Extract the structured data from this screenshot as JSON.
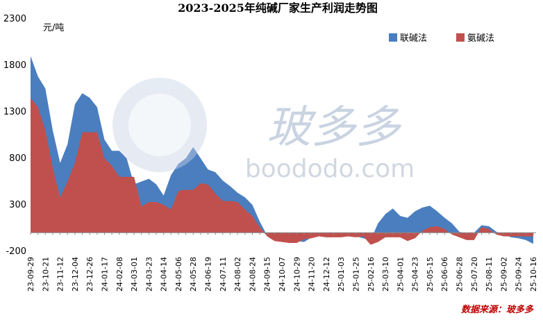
{
  "chart_data": {
    "type": "area",
    "title": "2023-2025年纯碱厂家生产利润走势图",
    "y_label": "元/吨",
    "source": "数据来源：玻多多",
    "watermark": [
      "玻多多",
      "boododo.com"
    ],
    "legend_position": "upper right",
    "categories": [
      "23-09-29",
      null,
      "23-10-21",
      null,
      "23-11-12",
      null,
      "23-12-04",
      null,
      "23-12-26",
      null,
      "24-01-17",
      null,
      "24-02-08",
      null,
      "24-03-01",
      null,
      "24-03-23",
      null,
      "24-04-14",
      null,
      "24-05-06",
      null,
      "24-05-28",
      null,
      "24-06-19",
      null,
      "24-07-11",
      null,
      "24-08-02",
      null,
      "24-08-24",
      null,
      "24-09-15",
      null,
      "24-10-07",
      null,
      "24-10-29",
      null,
      "24-11-20",
      null,
      "24-12-12",
      null,
      "25-01-03",
      null,
      "25-01-25",
      null,
      "25-02-16",
      null,
      "25-03-10",
      null,
      "25-04-01",
      null,
      "25-04-23",
      null,
      "25-05-15",
      null,
      "25-06-06",
      null,
      "25-06-28",
      null,
      "25-07-20",
      null,
      "25-08-11",
      null,
      "25-09-02",
      null,
      "25-09-24",
      null,
      "25-10-16"
    ],
    "series": [
      {
        "name": "联碱法",
        "color": "#4a7ebf",
        "values": [
          1900,
          1680,
          1550,
          1100,
          750,
          950,
          1380,
          1500,
          1450,
          1350,
          1000,
          880,
          880,
          800,
          520,
          550,
          580,
          520,
          400,
          620,
          740,
          800,
          920,
          800,
          680,
          650,
          560,
          500,
          430,
          380,
          300,
          120,
          -30,
          -50,
          -60,
          -80,
          -90,
          -100,
          -50,
          -30,
          -40,
          -20,
          0,
          -30,
          -40,
          -60,
          -80,
          100,
          200,
          260,
          180,
          160,
          230,
          270,
          290,
          230,
          160,
          100,
          10,
          -10,
          0,
          80,
          70,
          10,
          -20,
          -50,
          -60,
          -80,
          -120
        ]
      },
      {
        "name": "氨碱法",
        "color": "#c0504d",
        "values": [
          1450,
          1350,
          1100,
          700,
          380,
          550,
          750,
          1080,
          1080,
          1080,
          800,
          720,
          600,
          600,
          600,
          280,
          330,
          330,
          300,
          250,
          450,
          460,
          460,
          530,
          520,
          420,
          340,
          340,
          330,
          250,
          180,
          60,
          -40,
          -90,
          -100,
          -110,
          -110,
          -70,
          -60,
          -40,
          -50,
          -50,
          -50,
          -40,
          -50,
          -40,
          -130,
          -100,
          -50,
          -50,
          -50,
          -90,
          -60,
          20,
          60,
          70,
          40,
          -20,
          -50,
          -80,
          -80,
          60,
          40,
          -20,
          -40,
          -40,
          -40,
          -40,
          -40
        ]
      }
    ],
    "ylim": [
      -200,
      2300
    ],
    "yticks": [
      -200,
      300,
      800,
      1300,
      1800,
      2300
    ]
  }
}
